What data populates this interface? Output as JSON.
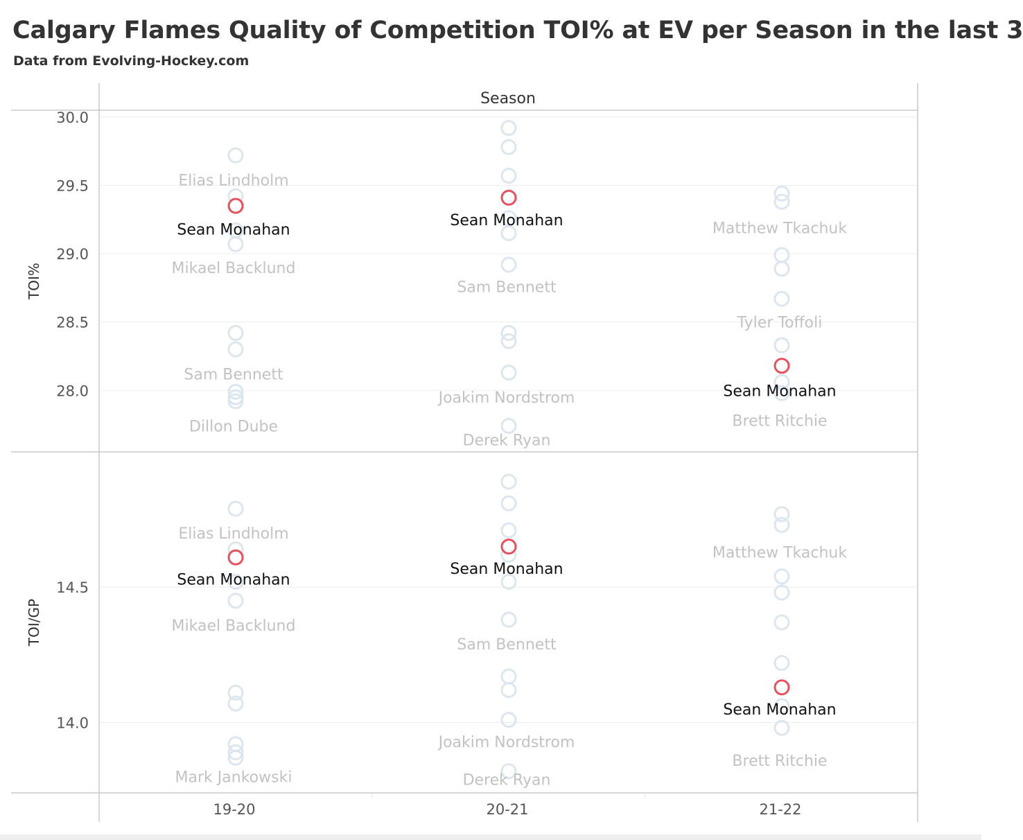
{
  "chart_data": {
    "type": "scatter",
    "title": "Calgary Flames Quality of Competition TOI% at EV per Season in the last 3",
    "subtitle": "Data from Evolving-Hockey.com",
    "column_header": "Season",
    "categories": [
      "19-20",
      "20-21",
      "21-22"
    ],
    "highlight_player": "Sean Monahan",
    "colors": {
      "highlight": "#e8505b",
      "other": "#dce6ee",
      "label_faded": "#c2c2c2",
      "label_dark": "#111111",
      "axis_text": "#555555"
    },
    "panels": [
      {
        "ylabel": "TOI%",
        "ylim": [
          27.55,
          30.05
        ],
        "ticks": [
          28.0,
          28.5,
          29.0,
          29.5,
          30.0
        ],
        "tick_labels": [
          "28.0",
          "28.5",
          "29.0",
          "29.5",
          "30.0"
        ],
        "columns": [
          {
            "season": "19-20",
            "others": [
              29.72,
              29.42,
              29.17,
              29.07,
              28.42,
              28.3,
              27.99,
              27.95,
              27.92
            ],
            "highlight_value": 29.35,
            "labels": [
              {
                "text": "Elias Lindholm",
                "value": 29.54,
                "dark": false
              },
              {
                "text": "Sean Monahan",
                "value": 29.18,
                "dark": true
              },
              {
                "text": "Mikael Backlund",
                "value": 28.9,
                "dark": false
              },
              {
                "text": "Sam Bennett",
                "value": 28.12,
                "dark": false
              },
              {
                "text": "Dillon Dube",
                "value": 27.74,
                "dark": false
              }
            ]
          },
          {
            "season": "20-21",
            "others": [
              29.92,
              29.78,
              29.57,
              29.26,
              29.15,
              28.92,
              28.42,
              28.36,
              28.13,
              27.74
            ],
            "highlight_value": 29.41,
            "labels": [
              {
                "text": "Sean Monahan",
                "value": 29.25,
                "dark": true
              },
              {
                "text": "Sam Bennett",
                "value": 28.76,
                "dark": false
              },
              {
                "text": "Joakim Nordstrom",
                "value": 27.95,
                "dark": false
              },
              {
                "text": "Derek Ryan",
                "value": 27.64,
                "dark": false
              }
            ]
          },
          {
            "season": "21-22",
            "others": [
              29.44,
              29.38,
              28.99,
              28.89,
              28.67,
              28.33,
              28.06,
              27.98
            ],
            "highlight_value": 28.18,
            "labels": [
              {
                "text": "Matthew Tkachuk",
                "value": 29.19,
                "dark": false
              },
              {
                "text": "Tyler Toffoli",
                "value": 28.5,
                "dark": false
              },
              {
                "text": "Sean Monahan",
                "value": 28.0,
                "dark": true
              },
              {
                "text": "Brett Ritchie",
                "value": 27.78,
                "dark": false
              }
            ]
          }
        ]
      },
      {
        "ylabel": "TOI/GP",
        "ylim": [
          13.74,
          15.0
        ],
        "ticks": [
          14.0,
          14.5
        ],
        "tick_labels": [
          "14.0",
          "14.5"
        ],
        "columns": [
          {
            "season": "19-20",
            "others": [
              14.79,
              14.64,
              14.52,
              14.45,
              14.11,
              14.07,
              13.92,
              13.89,
              13.87
            ],
            "highlight_value": 14.61,
            "labels": [
              {
                "text": "Elias Lindholm",
                "value": 14.7,
                "dark": false
              },
              {
                "text": "Sean Monahan",
                "value": 14.53,
                "dark": true
              },
              {
                "text": "Mikael Backlund",
                "value": 14.36,
                "dark": false
              },
              {
                "text": "Mark Jankowski",
                "value": 13.8,
                "dark": false
              }
            ]
          },
          {
            "season": "20-21",
            "others": [
              14.89,
              14.81,
              14.71,
              14.62,
              14.52,
              14.38,
              14.17,
              14.12,
              14.01,
              13.82
            ],
            "highlight_value": 14.65,
            "labels": [
              {
                "text": "Sean Monahan",
                "value": 14.57,
                "dark": true
              },
              {
                "text": "Sam Bennett",
                "value": 14.29,
                "dark": false
              },
              {
                "text": "Joakim Nordstrom",
                "value": 13.93,
                "dark": false
              },
              {
                "text": "Derek Ryan",
                "value": 13.79,
                "dark": false
              }
            ]
          },
          {
            "season": "21-22",
            "others": [
              14.77,
              14.73,
              14.54,
              14.48,
              14.37,
              14.22,
              14.06,
              13.98
            ],
            "highlight_value": 14.13,
            "labels": [
              {
                "text": "Matthew Tkachuk",
                "value": 14.63,
                "dark": false
              },
              {
                "text": "Sean Monahan",
                "value": 14.05,
                "dark": true
              },
              {
                "text": "Brett Ritchie",
                "value": 13.86,
                "dark": false
              }
            ]
          }
        ]
      }
    ]
  }
}
